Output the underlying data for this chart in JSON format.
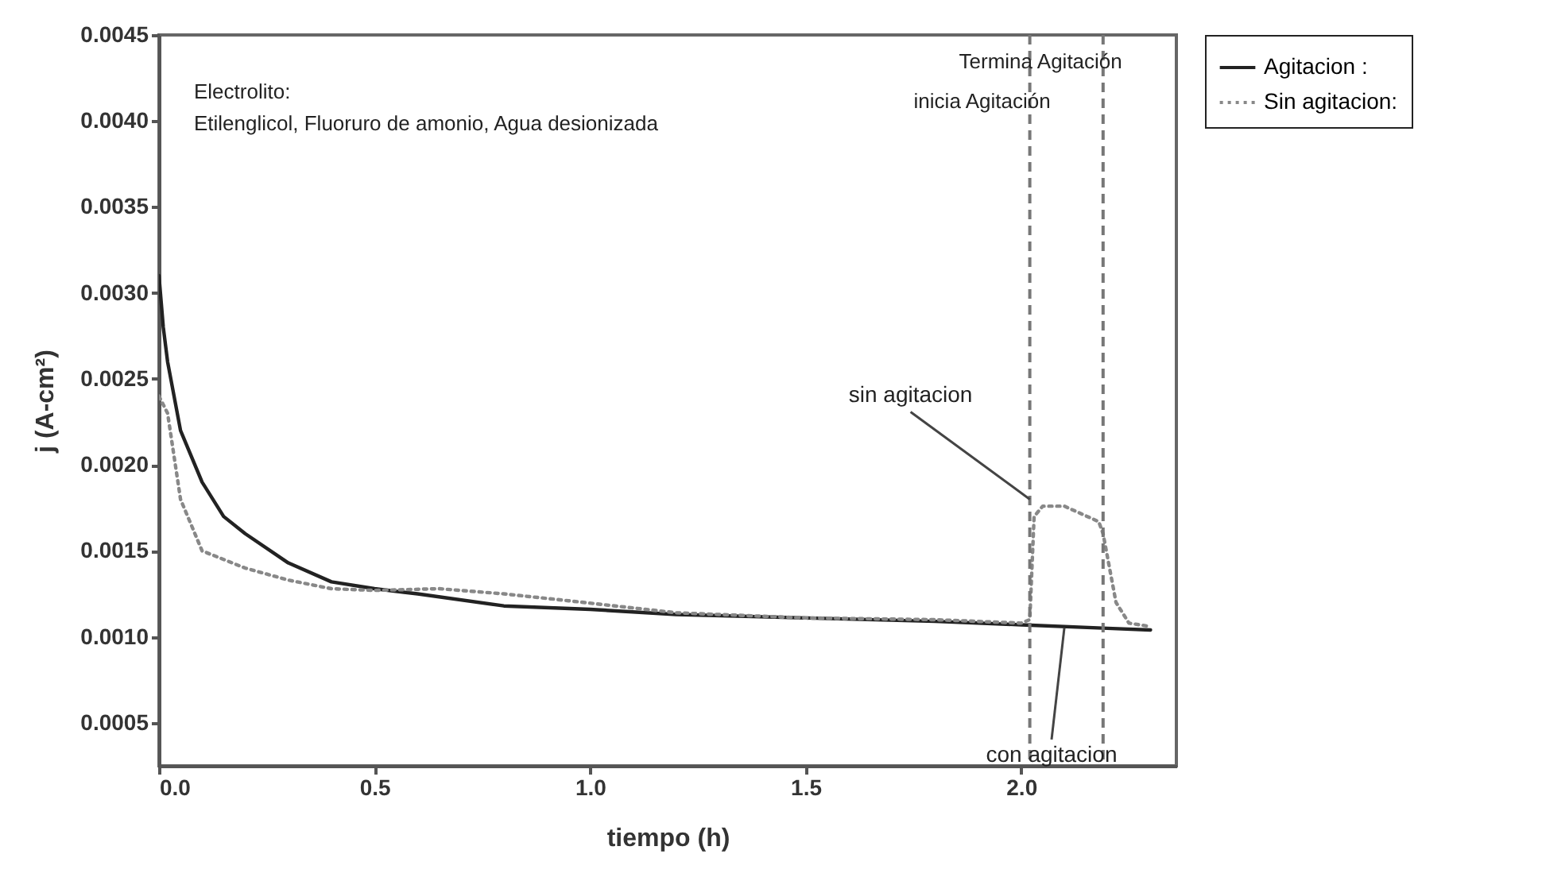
{
  "chart_data": {
    "type": "line",
    "xlabel": "tiempo (h)",
    "ylabel": "j (A-cm²)",
    "xlim": [
      0,
      2.36
    ],
    "ylim": [
      0.00025,
      0.0045
    ],
    "xticks": [
      {
        "value": 0,
        "label": "0.0"
      },
      {
        "value": 0.5,
        "label": "0.5"
      },
      {
        "value": 1,
        "label": "1.0"
      },
      {
        "value": 1.5,
        "label": "1.5"
      },
      {
        "value": 2,
        "label": "2.0"
      }
    ],
    "yticks": [
      {
        "value": 0.0005,
        "label": "0.0005"
      },
      {
        "value": 0.001,
        "label": "0.0010"
      },
      {
        "value": 0.0015,
        "label": "0.0015"
      },
      {
        "value": 0.002,
        "label": "0.0020"
      },
      {
        "value": 0.0025,
        "label": "0.0025"
      },
      {
        "value": 0.003,
        "label": "0.0030"
      },
      {
        "value": 0.0035,
        "label": "0.0035"
      },
      {
        "value": 0.004,
        "label": "0.0040"
      },
      {
        "value": 0.0045,
        "label": "0.0045"
      }
    ],
    "grid": false,
    "legend": "top right",
    "series": [
      {
        "name": "Agitacion :",
        "color": "#222222",
        "line_style": "solid",
        "x": [
          0,
          0.01,
          0.02,
          0.05,
          0.1,
          0.15,
          0.2,
          0.3,
          0.4,
          0.5,
          0.6,
          0.8,
          1.0,
          1.2,
          1.5,
          1.8,
          2.0,
          2.2,
          2.3
        ],
        "values": [
          0.0031,
          0.0028,
          0.0026,
          0.0022,
          0.0019,
          0.0017,
          0.0016,
          0.00143,
          0.00132,
          0.00128,
          0.00125,
          0.00118,
          0.00116,
          0.00113,
          0.00111,
          0.00109,
          0.00107,
          0.00105,
          0.00104
        ]
      },
      {
        "name": "Sin agitacion:",
        "color": "#888888",
        "line_style": "dotted",
        "x": [
          0,
          0.02,
          0.05,
          0.1,
          0.15,
          0.2,
          0.3,
          0.4,
          0.5,
          0.65,
          0.8,
          0.95,
          1.2,
          1.5,
          1.8,
          2.0,
          2.02,
          2.03,
          2.05,
          2.1,
          2.18,
          2.19,
          2.22,
          2.25,
          2.3
        ],
        "values": [
          0.0024,
          0.0023,
          0.0018,
          0.0015,
          0.00145,
          0.0014,
          0.00133,
          0.00128,
          0.00127,
          0.00128,
          0.00125,
          0.00121,
          0.00114,
          0.00111,
          0.0011,
          0.00108,
          0.0011,
          0.0017,
          0.00176,
          0.00176,
          0.00167,
          0.0016,
          0.0012,
          0.00108,
          0.00106
        ]
      }
    ],
    "ref_lines": [
      {
        "axis": "x",
        "value": 2.02,
        "label": "inicia Agitación",
        "line_style": "dashed",
        "color": "#777777"
      },
      {
        "axis": "x",
        "value": 2.19,
        "label": "Termina Agitación",
        "line_style": "dashed",
        "color": "#777777"
      }
    ],
    "annotations": [
      "Electrolito:",
      "Etilenglicol, Fluoruro de amonio, Agua desionizada",
      {
        "text": "sin agitacion",
        "x": 2.02,
        "y": 0.0018
      },
      {
        "text": "con agitacion",
        "x": 2.1,
        "y": 0.00105
      }
    ]
  }
}
